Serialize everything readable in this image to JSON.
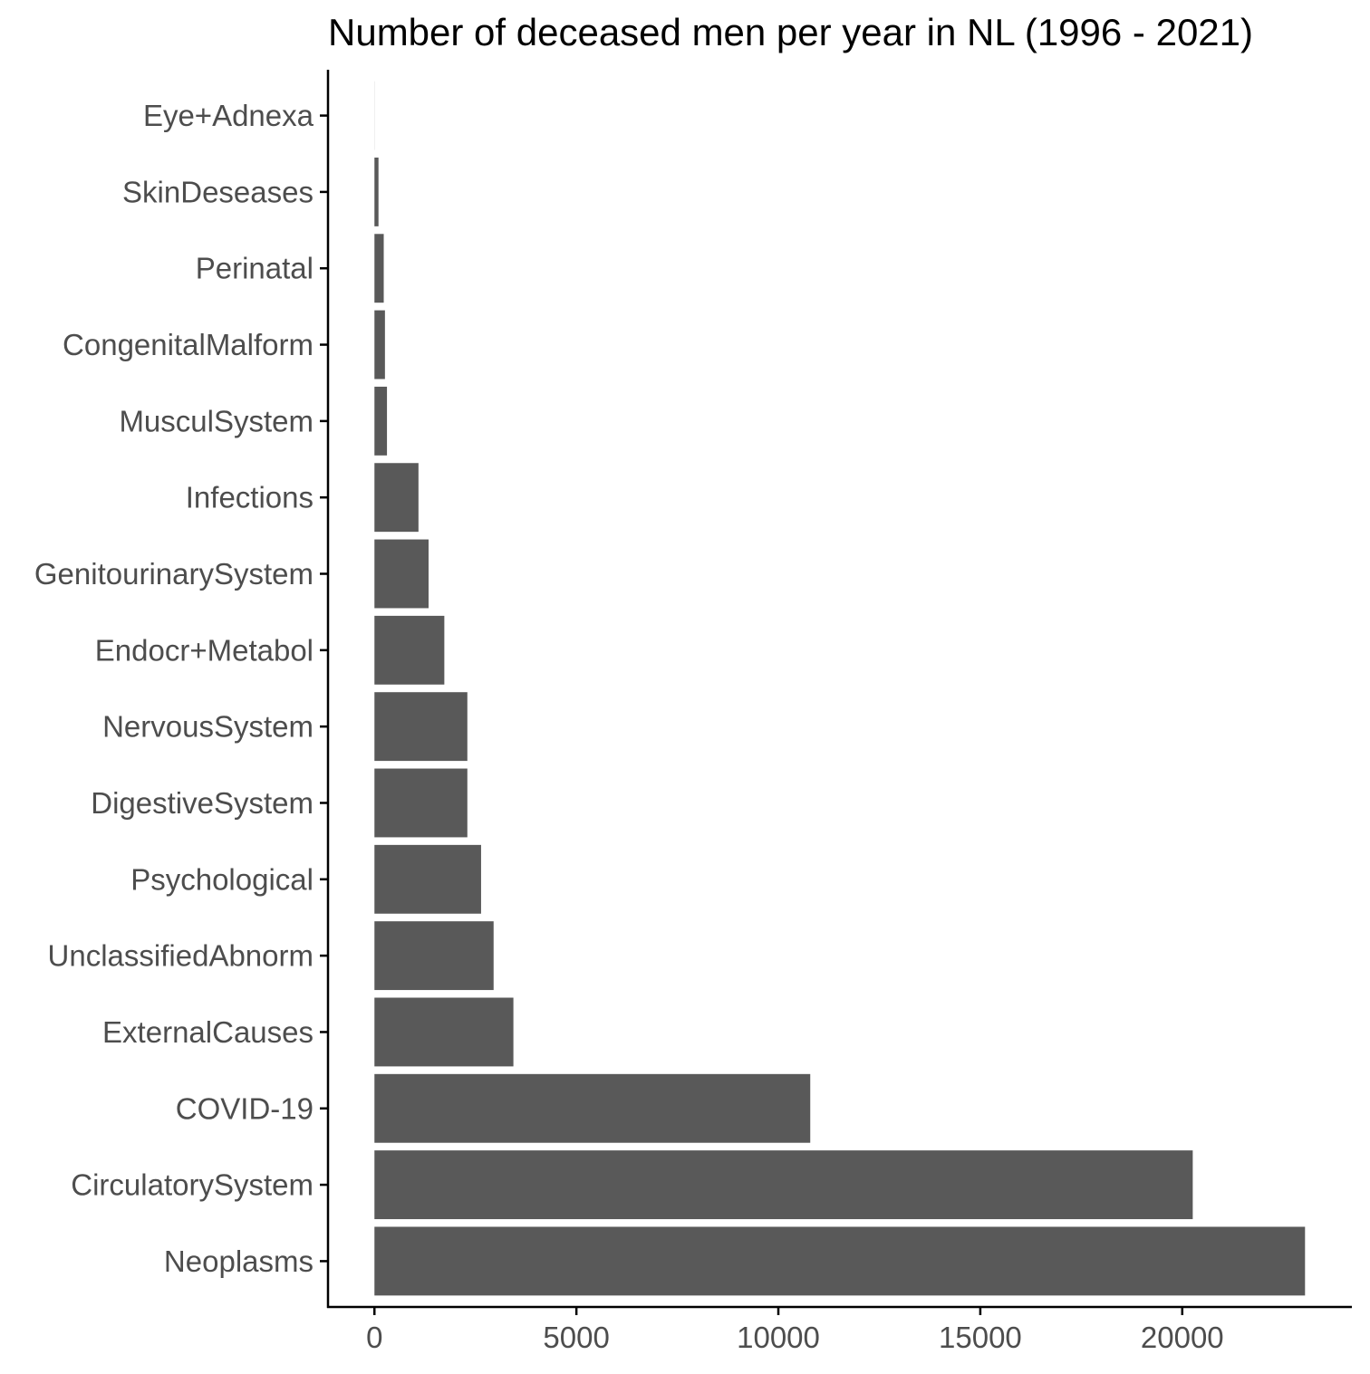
{
  "chart_data": {
    "type": "bar",
    "orientation": "horizontal",
    "title": "Number of deceased men per year in NL (1996 - 2021)",
    "xlabel": "",
    "ylabel": "",
    "categories": [
      "Eye+Adnexa",
      "SkinDeseases",
      "Perinatal",
      "CongenitalMalform",
      "MusculSystem",
      "Infections",
      "GenitourinarySystem",
      "Endocr+Metabol",
      "NervousSystem",
      "DigestiveSystem",
      "Psychological",
      "UnclassifiedAbnorm",
      "ExternalCauses",
      "COVID-19",
      "CirculatorySystem",
      "Neoplasms"
    ],
    "values": [
      2,
      100,
      230,
      260,
      310,
      1090,
      1340,
      1730,
      2300,
      2300,
      2640,
      2950,
      3440,
      10790,
      20260,
      23040
    ],
    "xlim": [
      -1150,
      24200
    ],
    "x_ticks": [
      0,
      5000,
      10000,
      15000,
      20000
    ],
    "x_tick_labels": [
      "0",
      "5000",
      "10000",
      "15000",
      "20000"
    ],
    "bar_color": "#595959",
    "axis_color": "#000000",
    "label_color": "#4d4d4d",
    "grid": false,
    "legend": "none"
  }
}
